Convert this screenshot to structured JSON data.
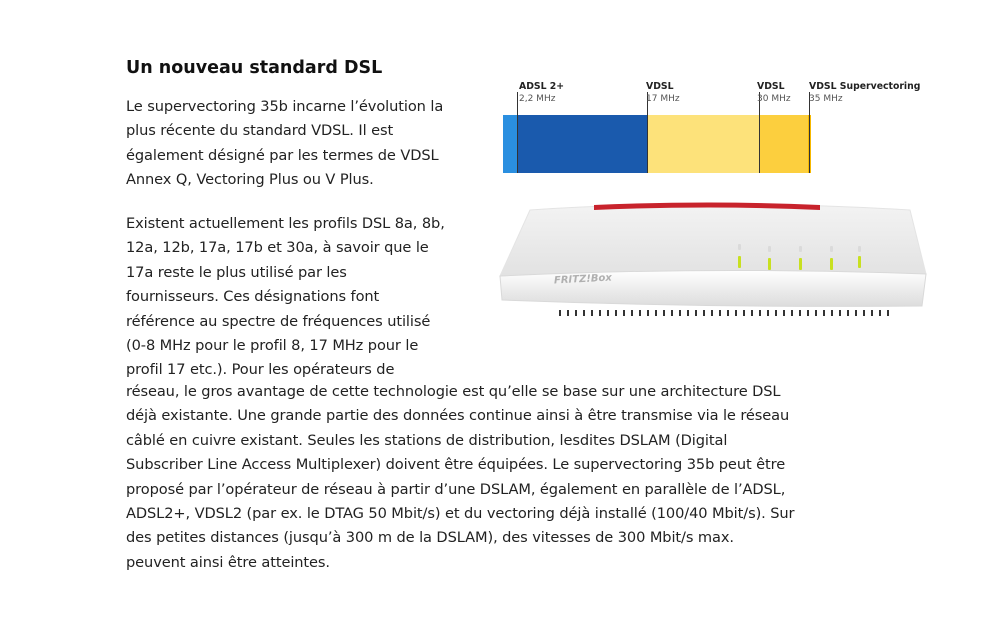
{
  "article": {
    "heading": "Un nouveau standard DSL",
    "para1_lines": [
      "Le supervectoring 35b incarne l’évolution la",
      "plus récente du standard VDSL. Il est",
      "également désigné par les termes de VDSL",
      "Annex Q, Vectoring Plus ou V Plus."
    ],
    "para2_lines": [
      "Existent actuellement les profils DSL 8a, 8b,",
      "12a, 12b, 17a, 17b et 30a, à savoir que le",
      "17a reste le plus utilisé par les",
      "fournisseurs. Ces désignations font",
      "référence au spectre de fréquences utilisé",
      "(0-8 MHz pour le profil 8, 17 MHz pour le",
      "profil 17 etc.). Pour les opérateurs de",
      "réseau, le gros avantage de cette technologie est qu’elle se base sur une architecture DSL",
      "déjà existante. Une grande partie des données continue ainsi à être transmise via le réseau",
      "câblé en cuivre existant. Seules les stations de distribution, lesdites DSLAM (Digital",
      "Subscriber Line Access Multiplexer) doivent être équipées. Le supervectoring 35b peut être",
      "proposé par l’opérateur de réseau à partir d’une DSLAM, également en parallèle de l’ADSL,",
      "ADSL2+, VDSL2 (par ex. le DTAG 50 Mbit/s) et du vectoring déjà installé (100/40 Mbit/s). Sur",
      "des petites distances (jusqu’à 300 m de la DSLAM), des vitesses de 300 Mbit/s max.",
      "peuvent ainsi être atteintes."
    ]
  },
  "frequency_graphic": {
    "markers": [
      {
        "name": "ADSL 2+",
        "freq": "2,2 MHz"
      },
      {
        "name": "VDSL",
        "freq": "17 MHz"
      },
      {
        "name": "VDSL",
        "freq": "30 MHz"
      },
      {
        "name": "VDSL Supervectoring",
        "freq": "35 MHz"
      }
    ],
    "colors": {
      "adsl": "#2a8fe0",
      "adsl2plus": "#1a5aad",
      "vdsl17": "#fde27a",
      "vdsl30": "#fccf3e",
      "supervectoring": "#f6b800"
    }
  },
  "router": {
    "brand": "FRITZ!Box",
    "accent_color": "#c8232c",
    "led_color": "#c8e020"
  }
}
